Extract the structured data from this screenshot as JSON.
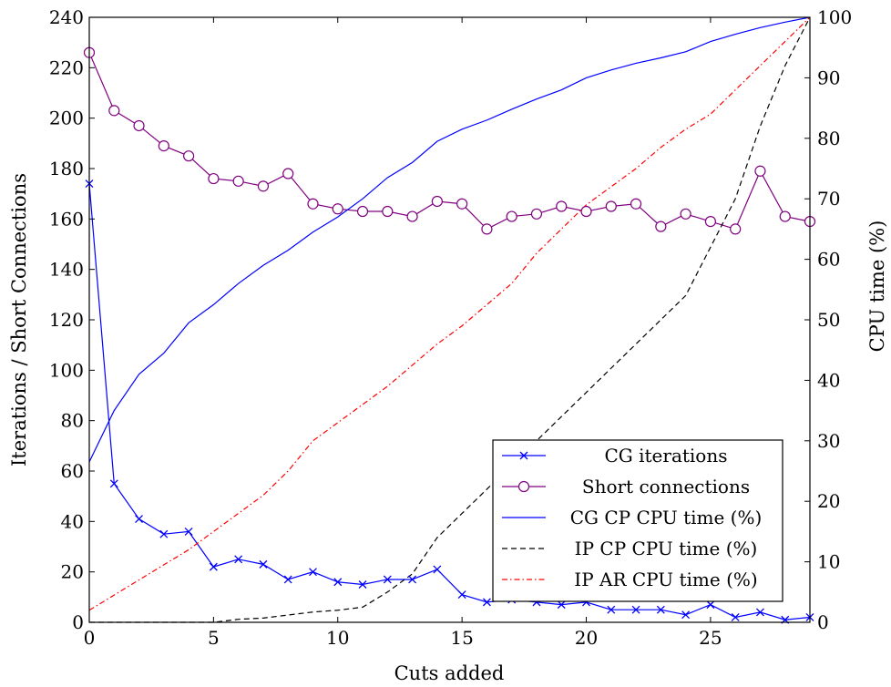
{
  "chart_data": {
    "type": "line",
    "xlabel": "Cuts added",
    "ylabel_left": "Iterations / Short Connections",
    "ylabel_right": "CPU time (%)",
    "xlim": [
      0,
      29
    ],
    "ylim_left": [
      0,
      240
    ],
    "ylim_right": [
      0,
      100
    ],
    "x_ticks": [
      0,
      5,
      10,
      15,
      20,
      25
    ],
    "y_ticks_left": [
      0,
      20,
      40,
      60,
      80,
      100,
      120,
      140,
      160,
      180,
      200,
      220,
      240
    ],
    "y_ticks_right": [
      0,
      10,
      20,
      30,
      40,
      50,
      60,
      70,
      80,
      90,
      100
    ],
    "grid": false,
    "legend_position": "bottom-right",
    "x": [
      0,
      1,
      2,
      3,
      4,
      5,
      6,
      7,
      8,
      9,
      10,
      11,
      12,
      13,
      14,
      15,
      16,
      17,
      18,
      19,
      20,
      21,
      22,
      23,
      24,
      25,
      26,
      27,
      28,
      29
    ],
    "series": [
      {
        "name": "CG iterations",
        "axis": "left",
        "color": "#0000ff",
        "marker": "x",
        "dash": "solid",
        "values": [
          174,
          55,
          41,
          35,
          36,
          22,
          25,
          23,
          17,
          20,
          16,
          15,
          17,
          17,
          21,
          11,
          8,
          9,
          8,
          7,
          8,
          5,
          5,
          5,
          3,
          7,
          2,
          4,
          1,
          2
        ]
      },
      {
        "name": "Short connections",
        "axis": "left",
        "color": "#800080",
        "marker": "circle",
        "dash": "solid",
        "values": [
          226,
          203,
          197,
          189,
          185,
          176,
          175,
          173,
          178,
          166,
          164,
          163,
          163,
          161,
          167,
          166,
          156,
          161,
          162,
          165,
          163,
          165,
          166,
          157,
          162,
          159,
          156,
          179,
          161,
          159
        ]
      },
      {
        "name": "CG CP CPU time (%)",
        "axis": "right",
        "color": "#0000ff",
        "marker": "none",
        "dash": "solid",
        "values": [
          26.5,
          35,
          41,
          44.5,
          49.5,
          52.5,
          56,
          59,
          61.5,
          64.5,
          67,
          70,
          73.5,
          76,
          79.5,
          81.5,
          83,
          84.8,
          86.5,
          88,
          90,
          91.3,
          92.4,
          93.3,
          94.3,
          96,
          97.2,
          98.3,
          99.2,
          100
        ]
      },
      {
        "name": "IP CP CPU time (%)",
        "axis": "right",
        "color": "#000000",
        "marker": "none",
        "dash": "dashed",
        "values": [
          0,
          0,
          0,
          0,
          0,
          0,
          0.5,
          0.7,
          1.2,
          1.7,
          2,
          2.5,
          5,
          8,
          14,
          18,
          22,
          26,
          30,
          34,
          38,
          42,
          46,
          50,
          54,
          62,
          70,
          82,
          92,
          100
        ]
      },
      {
        "name": "IP AR CPU time (%)",
        "axis": "right",
        "color": "#ff0000",
        "marker": "none",
        "dash": "dashdot",
        "values": [
          2,
          4.5,
          7,
          9.5,
          12,
          15,
          18,
          21,
          25,
          30,
          33,
          36,
          39,
          42.5,
          46,
          49,
          52.5,
          56,
          61,
          65,
          69,
          72,
          75,
          78.5,
          81.5,
          84,
          88,
          92,
          96,
          100
        ]
      }
    ]
  }
}
